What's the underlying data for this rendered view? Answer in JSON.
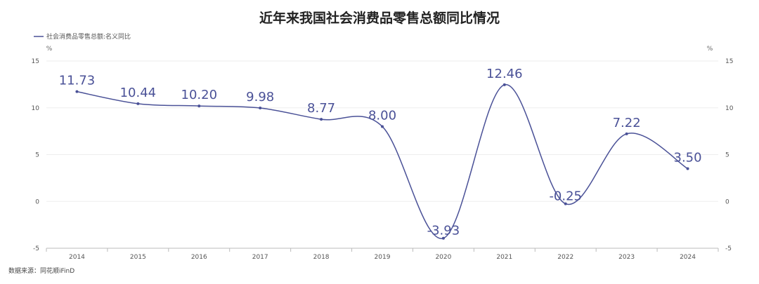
{
  "chart_data": {
    "type": "line",
    "title": "近年来我国社会消费品零售总额同比情况",
    "categories": [
      "2014",
      "2015",
      "2016",
      "2017",
      "2018",
      "2019",
      "2020",
      "2021",
      "2022",
      "2023",
      "2024"
    ],
    "series": [
      {
        "name": "社会消费品零售总额:名义同比",
        "values": [
          11.73,
          10.44,
          10.2,
          9.98,
          8.77,
          8.0,
          -3.93,
          12.46,
          -0.25,
          7.22,
          3.5
        ],
        "labels": [
          "11.73",
          "10.44",
          "10.20",
          "9.98",
          "8.77",
          "8.00",
          "-3.93",
          "12.46",
          "-0.25",
          "7.22",
          "3.50"
        ],
        "color": "#4a5197"
      }
    ],
    "ylim": [
      -5,
      15
    ],
    "yticks": [
      "15",
      "10",
      "5",
      "0",
      "-5"
    ],
    "ylabel_left": "%",
    "ylabel_right": "%",
    "grid": true,
    "legend_position": "top-left",
    "smooth": true
  },
  "source": "数据来源：同花顺iFinD",
  "colors": {
    "line": "#4a5197",
    "label": "#4a5197",
    "grid": "#ededed",
    "axis": "#bbbbbb"
  }
}
